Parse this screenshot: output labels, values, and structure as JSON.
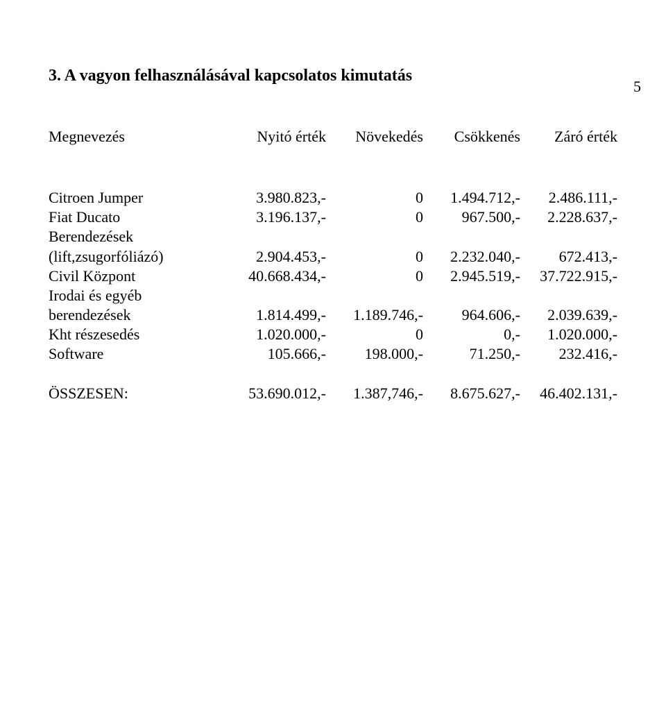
{
  "page_number": "5",
  "title": "3. A vagyon felhasználásával kapcsolatos kimutatás",
  "header": {
    "label": "Megnevezés",
    "col1": "Nyitó érték",
    "col2": "Növekedés",
    "col3": "Csökkenés",
    "col4": "Záró érték"
  },
  "rows": [
    {
      "label": "Citroen Jumper",
      "c1": "3.980.823,-",
      "c2": "0",
      "c3": "1.494.712,-",
      "c4": "2.486.111,-"
    },
    {
      "label": "Fiat Ducato",
      "c1": "3.196.137,-",
      "c2": "0",
      "c3": "967.500,-",
      "c4": "2.228.637,-"
    },
    {
      "label": "Berendezések",
      "c1": "",
      "c2": "",
      "c3": "",
      "c4": ""
    },
    {
      "label": "(lift,zsugorfóliázó)",
      "c1": "2.904.453,-",
      "c2": "0",
      "c3": "2.232.040,-",
      "c4": "672.413,-"
    },
    {
      "label": "Civil Központ",
      "c1": "40.668.434,-",
      "c2": "0",
      "c3": "2.945.519,-",
      "c4": "37.722.915,-"
    },
    {
      "label": "Irodai és egyéb",
      "c1": "",
      "c2": "",
      "c3": "",
      "c4": ""
    },
    {
      "label": "berendezések",
      "c1": "1.814.499,-",
      "c2": "1.189.746,-",
      "c3": "964.606,-",
      "c4": "2.039.639,-"
    },
    {
      "label": "Kht részesedés",
      "c1": "1.020.000,-",
      "c2": "0",
      "c3": "0,-",
      "c4": "1.020.000,-"
    },
    {
      "label": "Software",
      "c1": "105.666,-",
      "c2": "198.000,-",
      "c3": "71.250,-",
      "c4": "232.416,-"
    }
  ],
  "total": {
    "label": "ÖSSZESEN:",
    "c1": "53.690.012,-",
    "c2": "1.387,746,-",
    "c3": "8.675.627,-",
    "c4": "46.402.131,-"
  }
}
